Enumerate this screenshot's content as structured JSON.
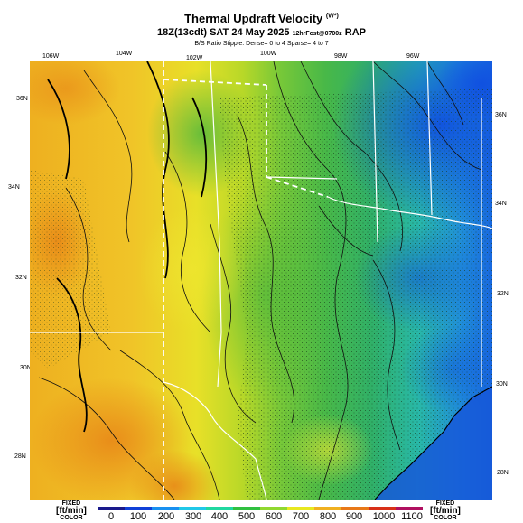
{
  "header": {
    "title": "Thermal Updraft Velocity",
    "title_suffix": "(W*)",
    "subtitle": "18Z(13cdt) SAT 24 May 2025",
    "subtitle_small": "12hrFcst@0700z",
    "subtitle_model": "RAP",
    "note": "B/S Ratio Stipple: Dense= 0 to 4 Sparse= 4 to 7"
  },
  "axes": {
    "lon_labels": [
      "106W",
      "104W",
      "102W",
      "100W",
      "98W",
      "96W"
    ],
    "lat_left": [
      "36N",
      "34N",
      "32N",
      "30N",
      "28N"
    ],
    "lat_right": [
      "36N",
      "34N",
      "32N",
      "30N",
      "28N"
    ]
  },
  "legend": {
    "left": {
      "top": "FIXED",
      "unit": "[ft/min]",
      "bottom": "COLOR"
    },
    "right": {
      "top": "FIXED",
      "unit": "[ft/min]",
      "bottom": "COLOR"
    },
    "ticks": [
      "0",
      "100",
      "200",
      "300",
      "400",
      "500",
      "600",
      "700",
      "800",
      "900",
      "1000",
      "1100"
    ],
    "colors": [
      "#1a1a8c",
      "#1040d8",
      "#1890f0",
      "#20c8e8",
      "#20d8a0",
      "#30c040",
      "#90d830",
      "#e8e820",
      "#f0b020",
      "#e87818",
      "#d83018",
      "#b01060"
    ]
  }
}
